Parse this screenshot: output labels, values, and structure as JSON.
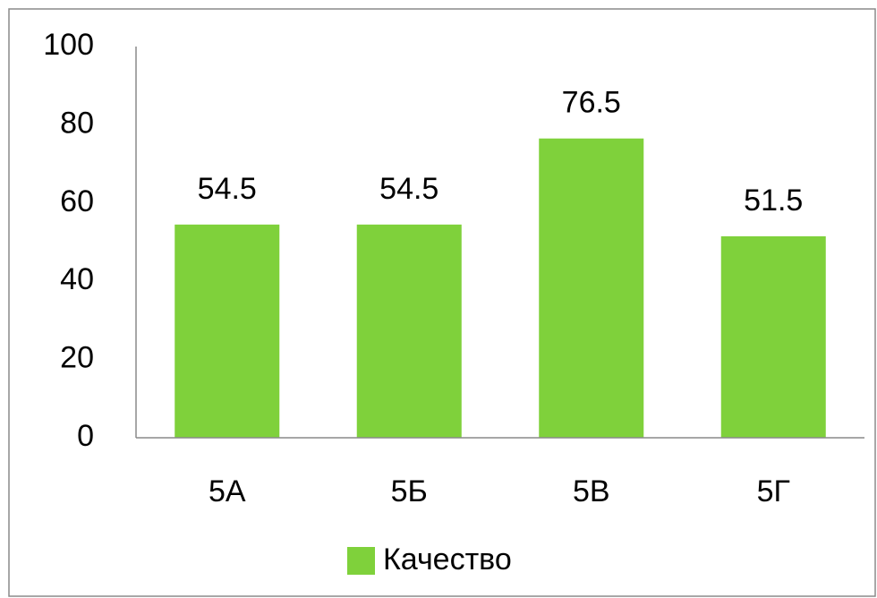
{
  "chart_data": {
    "type": "bar",
    "categories": [
      "5А",
      "5Б",
      "5В",
      "5Г"
    ],
    "series": [
      {
        "name": "Качество",
        "color": "#7fd13b",
        "values": [
          54.5,
          54.5,
          76.5,
          51.5
        ]
      }
    ],
    "ylim": [
      0,
      100
    ],
    "yticks": [
      0,
      20,
      40,
      60,
      80,
      100
    ],
    "grid": false,
    "legend": "bottom",
    "data_labels": true
  }
}
